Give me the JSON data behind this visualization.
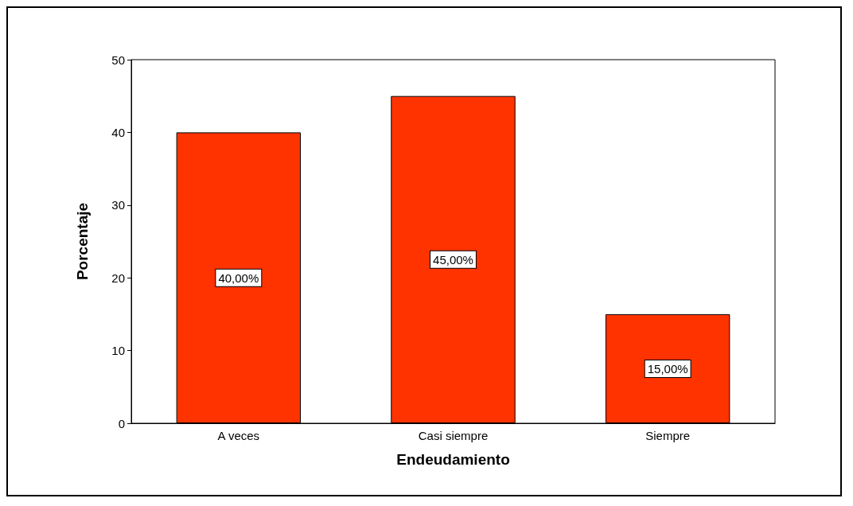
{
  "chart_data": {
    "type": "bar",
    "xlabel": "Endeudamiento",
    "ylabel": "Porcentaje",
    "categories": [
      "A veces",
      "Casi siempre",
      "Siempre"
    ],
    "values": [
      40,
      45,
      15
    ],
    "value_labels": [
      "40,00%",
      "45,00%",
      "15,00%"
    ],
    "color": "#ff3300",
    "ylim": [
      0,
      50
    ],
    "yticks": [
      0,
      10,
      20,
      30,
      40,
      50
    ],
    "grid": false
  }
}
